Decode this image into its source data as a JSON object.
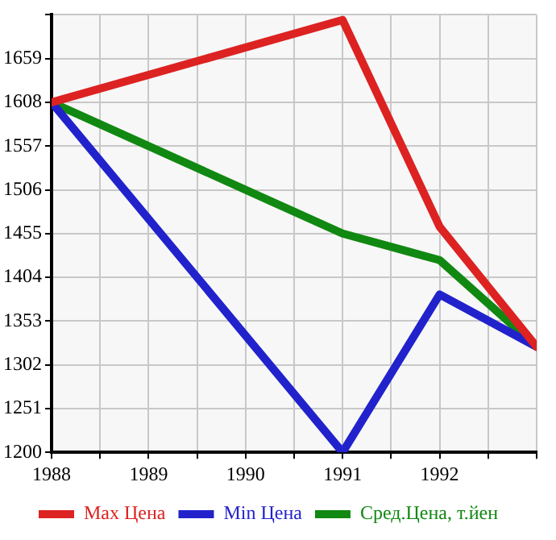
{
  "chart_data": {
    "type": "line",
    "x": [
      1988,
      1991,
      1992,
      1993
    ],
    "series": [
      {
        "name": "Max Цена",
        "color": "#dd2222",
        "values": [
          1608,
          1704,
          1463,
          1323
        ]
      },
      {
        "name": "Min Цена",
        "color": "#2222cc",
        "values": [
          1608,
          1200,
          1384,
          1323
        ]
      },
      {
        "name": "Сред.Цена, т.йен",
        "color": "#118811",
        "values": [
          1608,
          1455,
          1424,
          1323
        ]
      }
    ],
    "xlim": [
      1988,
      1993
    ],
    "xticks": [
      1988,
      {
        "value": 1988.5,
        "label": null
      },
      1989,
      {
        "value": 1989.5,
        "label": null
      },
      1990,
      {
        "value": 1990.5,
        "label": null
      },
      1991,
      {
        "value": 1991.5,
        "label": null
      },
      1992,
      {
        "value": 1992.5,
        "label": null
      },
      {
        "value": 1993,
        "label": null
      }
    ],
    "ylim": [
      1200,
      1710
    ],
    "yticks": [
      1200,
      1251,
      1302,
      1353,
      1404,
      1455,
      1506,
      1557,
      1608,
      1659,
      {
        "value": 1710,
        "label": null
      }
    ],
    "grid": true,
    "legend": "bottom",
    "marker": "none",
    "line_style": "solid"
  }
}
